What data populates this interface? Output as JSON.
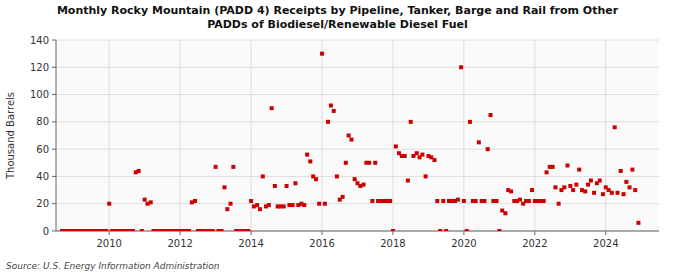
{
  "chart_data": {
    "type": "scatter",
    "title": "Monthly Rocky Mountain (PADD 4) Receipts by Pipeline, Tanker, Barge and Rail from Other\nPADDs of Biodiesel/Renewable Diesel Fuel",
    "ylabel": "Thousand Barrels",
    "source": "Source: U.S. Energy Information Administration",
    "color": "#cc0000",
    "marker": "square",
    "grid": true,
    "xlim": [
      2008.5,
      2025.5
    ],
    "xticks": [
      2010,
      2012,
      2014,
      2016,
      2018,
      2020,
      2022,
      2024
    ],
    "ylim": [
      0,
      140
    ],
    "yticks": [
      0,
      20,
      40,
      60,
      80,
      100,
      120,
      140
    ],
    "x": [
      2008.67,
      2008.75,
      2008.83,
      2008.92,
      2009.0,
      2009.08,
      2009.17,
      2009.25,
      2009.33,
      2009.42,
      2009.5,
      2009.58,
      2009.67,
      2009.75,
      2009.83,
      2009.92,
      2010.0,
      2010.08,
      2010.17,
      2010.25,
      2010.33,
      2010.42,
      2010.5,
      2010.58,
      2010.67,
      2010.75,
      2010.83,
      2010.92,
      2011.0,
      2011.08,
      2011.17,
      2011.25,
      2011.33,
      2011.42,
      2011.5,
      2011.58,
      2011.67,
      2011.75,
      2011.83,
      2011.92,
      2012.0,
      2012.08,
      2012.17,
      2012.25,
      2012.33,
      2012.42,
      2012.5,
      2012.58,
      2012.67,
      2012.75,
      2012.83,
      2012.92,
      2013.0,
      2013.08,
      2013.17,
      2013.25,
      2013.33,
      2013.42,
      2013.5,
      2013.58,
      2013.67,
      2013.75,
      2013.83,
      2013.92,
      2014.0,
      2014.08,
      2014.17,
      2014.25,
      2014.33,
      2014.42,
      2014.5,
      2014.58,
      2014.67,
      2014.75,
      2014.83,
      2014.92,
      2015.0,
      2015.08,
      2015.17,
      2015.25,
      2015.33,
      2015.42,
      2015.5,
      2015.58,
      2015.67,
      2015.75,
      2015.83,
      2015.92,
      2016.0,
      2016.08,
      2016.17,
      2016.25,
      2016.33,
      2016.42,
      2016.5,
      2016.58,
      2016.67,
      2016.75,
      2016.83,
      2016.92,
      2017.0,
      2017.08,
      2017.17,
      2017.25,
      2017.33,
      2017.42,
      2017.5,
      2017.58,
      2017.67,
      2017.75,
      2017.83,
      2017.92,
      2018.0,
      2018.08,
      2018.17,
      2018.25,
      2018.33,
      2018.42,
      2018.5,
      2018.58,
      2018.67,
      2018.75,
      2018.83,
      2018.92,
      2019.0,
      2019.08,
      2019.17,
      2019.25,
      2019.33,
      2019.42,
      2019.5,
      2019.58,
      2019.67,
      2019.75,
      2019.83,
      2019.92,
      2020.0,
      2020.08,
      2020.17,
      2020.25,
      2020.33,
      2020.42,
      2020.5,
      2020.58,
      2020.67,
      2020.75,
      2020.83,
      2020.92,
      2021.0,
      2021.08,
      2021.17,
      2021.25,
      2021.33,
      2021.42,
      2021.5,
      2021.58,
      2021.67,
      2021.75,
      2021.83,
      2021.92,
      2022.0,
      2022.08,
      2022.17,
      2022.25,
      2022.33,
      2022.42,
      2022.5,
      2022.58,
      2022.67,
      2022.75,
      2022.83,
      2022.92,
      2023.0,
      2023.08,
      2023.17,
      2023.25,
      2023.33,
      2023.42,
      2023.5,
      2023.58,
      2023.67,
      2023.75,
      2023.83,
      2023.92,
      2024.0,
      2024.08,
      2024.17,
      2024.25,
      2024.33,
      2024.42,
      2024.5,
      2024.58,
      2024.67,
      2024.75,
      2024.83,
      2024.92
    ],
    "values": [
      0,
      0,
      0,
      0,
      0,
      0,
      0,
      0,
      0,
      0,
      0,
      0,
      0,
      0,
      0,
      0,
      20,
      0,
      0,
      0,
      0,
      0,
      0,
      0,
      0,
      43,
      44,
      0,
      23,
      20,
      21,
      0,
      0,
      0,
      0,
      0,
      0,
      0,
      0,
      0,
      0,
      0,
      0,
      0,
      21,
      22,
      0,
      0,
      0,
      0,
      0,
      0,
      47,
      0,
      0,
      32,
      16,
      20,
      47,
      0,
      0,
      0,
      0,
      0,
      22,
      18,
      19,
      16,
      40,
      18,
      19,
      90,
      33,
      18,
      18,
      18,
      33,
      19,
      19,
      35,
      19,
      20,
      19,
      56,
      51,
      40,
      38,
      20,
      130,
      20,
      80,
      92,
      88,
      40,
      23,
      25,
      50,
      70,
      67,
      38,
      35,
      33,
      34,
      50,
      50,
      22,
      50,
      22,
      22,
      22,
      22,
      22,
      0,
      62,
      57,
      55,
      55,
      37,
      80,
      55,
      57,
      54,
      56,
      40,
      55,
      54,
      52,
      22,
      0,
      22,
      0,
      22,
      22,
      22,
      23,
      120,
      22,
      0,
      80,
      22,
      22,
      65,
      22,
      22,
      60,
      85,
      22,
      22,
      0,
      15,
      13,
      30,
      29,
      22,
      22,
      23,
      20,
      22,
      22,
      30,
      22,
      22,
      22,
      22,
      43,
      47,
      47,
      32,
      20,
      30,
      32,
      48,
      33,
      30,
      34,
      45,
      30,
      29,
      34,
      37,
      28,
      35,
      37,
      27,
      32,
      30,
      28,
      76,
      28,
      44,
      27,
      36,
      32,
      45,
      30,
      6
    ]
  }
}
